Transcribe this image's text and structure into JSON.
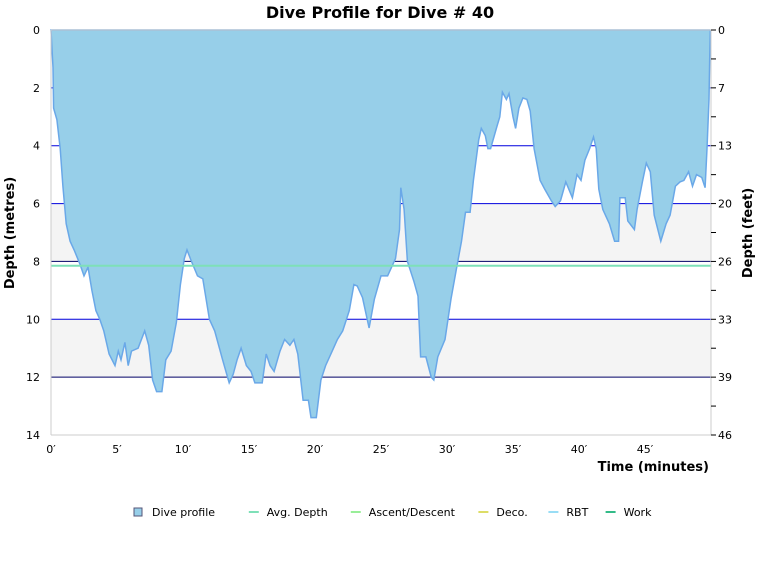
{
  "chart_data": {
    "type": "area",
    "title": "Dive Profile for Dive # 40",
    "xlabel": "Time (minutes)",
    "ylabel_left": "Depth (metres)",
    "ylabel_right": "Depth (feet)",
    "xlim": [
      0,
      50
    ],
    "ylim_left": [
      0,
      14
    ],
    "y_inverted": true,
    "x_ticks": [
      "0′",
      "5′",
      "10′",
      "15′",
      "20′",
      "25′",
      "30′",
      "35′",
      "40′",
      "45′"
    ],
    "y_ticks_left": [
      "0",
      "2",
      "4",
      "6",
      "8",
      "10",
      "12",
      "14"
    ],
    "y_ticks_right": [
      "0",
      "7",
      "13",
      "20",
      "26",
      "33",
      "39",
      "46"
    ],
    "grid": true,
    "legend_position": "bottom",
    "avg_depth": 8.15,
    "colors": {
      "profile_fill": "#97cfe9",
      "profile_line": "#6aa8e8",
      "avg": "#7ee0b8",
      "grid": "#0000dd",
      "band": "#f4f4f4"
    },
    "legend": [
      {
        "label": "Dive profile",
        "color": "#97cfe9",
        "kind": "box"
      },
      {
        "label": "Avg. Depth",
        "color": "#7ee0b8",
        "kind": "line"
      },
      {
        "label": "Ascent/Descent",
        "color": "#99ee99",
        "kind": "line"
      },
      {
        "label": "Deco.",
        "color": "#dddd66",
        "kind": "line"
      },
      {
        "label": "RBT",
        "color": "#99ddf5",
        "kind": "line"
      },
      {
        "label": "Work",
        "color": "#33bb88",
        "kind": "line"
      }
    ],
    "series": [
      {
        "name": "Dive profile",
        "x": [
          0,
          0.15,
          0.2,
          0.45,
          0.7,
          0.9,
          1.15,
          1.45,
          1.75,
          2.2,
          2.5,
          2.8,
          3.1,
          3.4,
          3.7,
          4.0,
          4.4,
          4.85,
          5.1,
          5.3,
          5.6,
          5.85,
          6.1,
          6.6,
          7.1,
          7.4,
          7.7,
          8.0,
          8.4,
          8.7,
          9.1,
          9.5,
          9.8,
          10.1,
          10.3,
          10.6,
          11.1,
          11.5,
          12.0,
          12.4,
          13.0,
          13.5,
          13.8,
          14.1,
          14.4,
          14.8,
          15.15,
          15.45,
          16.0,
          16.3,
          16.6,
          16.9,
          17.35,
          17.7,
          18.1,
          18.4,
          18.7,
          19.1,
          19.5,
          19.7,
          20.1,
          20.45,
          20.8,
          21.3,
          21.7,
          22.1,
          22.6,
          22.95,
          23.2,
          23.6,
          24.1,
          24.5,
          25.0,
          25.5,
          26.1,
          26.4,
          26.5,
          26.75,
          27.0,
          27.5,
          27.8,
          28.0,
          28.4,
          28.8,
          29.0,
          29.3,
          29.85,
          30.3,
          30.7,
          31.1,
          31.4,
          31.75,
          32.0,
          32.4,
          32.6,
          32.9,
          33.1,
          33.3,
          33.8,
          34.0,
          34.2,
          34.5,
          34.7,
          35.0,
          35.2,
          35.45,
          35.75,
          36.05,
          36.3,
          36.6,
          37.05,
          37.4,
          37.9,
          38.2,
          38.6,
          39.0,
          39.5,
          39.85,
          40.15,
          40.45,
          40.8,
          41.1,
          41.3,
          41.5,
          41.8,
          42.3,
          42.7,
          43.0,
          43.1,
          43.5,
          43.7,
          44.2,
          44.4,
          44.8,
          45.1,
          45.4,
          45.7,
          46.2,
          46.6,
          46.9,
          47.3,
          47.65,
          47.95,
          48.3,
          48.6,
          48.9,
          49.3,
          49.55,
          49.7,
          49.85,
          49.9,
          49.95
        ],
        "y": [
          0,
          1.3,
          2.7,
          3.1,
          4.1,
          5.4,
          6.7,
          7.3,
          7.6,
          8.1,
          8.5,
          8.2,
          9.0,
          9.7,
          10.0,
          10.4,
          11.2,
          11.6,
          11.1,
          11.4,
          10.8,
          11.6,
          11.1,
          11.0,
          10.4,
          10.9,
          12.1,
          12.5,
          12.5,
          11.4,
          11.1,
          10.1,
          8.8,
          7.9,
          7.6,
          7.95,
          8.5,
          8.6,
          10.0,
          10.4,
          11.4,
          12.2,
          11.9,
          11.4,
          11.0,
          11.6,
          11.8,
          12.2,
          12.2,
          11.2,
          11.6,
          11.8,
          11.1,
          10.7,
          10.9,
          10.7,
          11.2,
          12.8,
          12.8,
          13.4,
          13.4,
          12.1,
          11.6,
          11.1,
          10.7,
          10.4,
          9.7,
          8.8,
          8.85,
          9.25,
          10.3,
          9.3,
          8.5,
          8.5,
          7.9,
          6.9,
          5.45,
          6.2,
          8.0,
          8.7,
          9.2,
          11.3,
          11.3,
          12.0,
          12.1,
          11.3,
          10.7,
          9.3,
          8.3,
          7.3,
          6.3,
          6.3,
          5.2,
          3.8,
          3.4,
          3.65,
          4.1,
          4.1,
          3.3,
          3.0,
          2.15,
          2.4,
          2.2,
          3.0,
          3.4,
          2.7,
          2.35,
          2.4,
          2.8,
          4.1,
          5.2,
          5.5,
          5.9,
          6.1,
          5.9,
          5.25,
          5.8,
          5.0,
          5.2,
          4.5,
          4.1,
          3.7,
          4.1,
          5.5,
          6.2,
          6.7,
          7.3,
          7.3,
          5.8,
          5.8,
          6.6,
          6.9,
          6.2,
          5.25,
          4.6,
          4.9,
          6.4,
          7.3,
          6.7,
          6.4,
          5.4,
          5.25,
          5.2,
          4.9,
          5.4,
          5.0,
          5.1,
          5.45,
          4.1,
          2.4,
          1.0,
          0
        ]
      }
    ]
  }
}
